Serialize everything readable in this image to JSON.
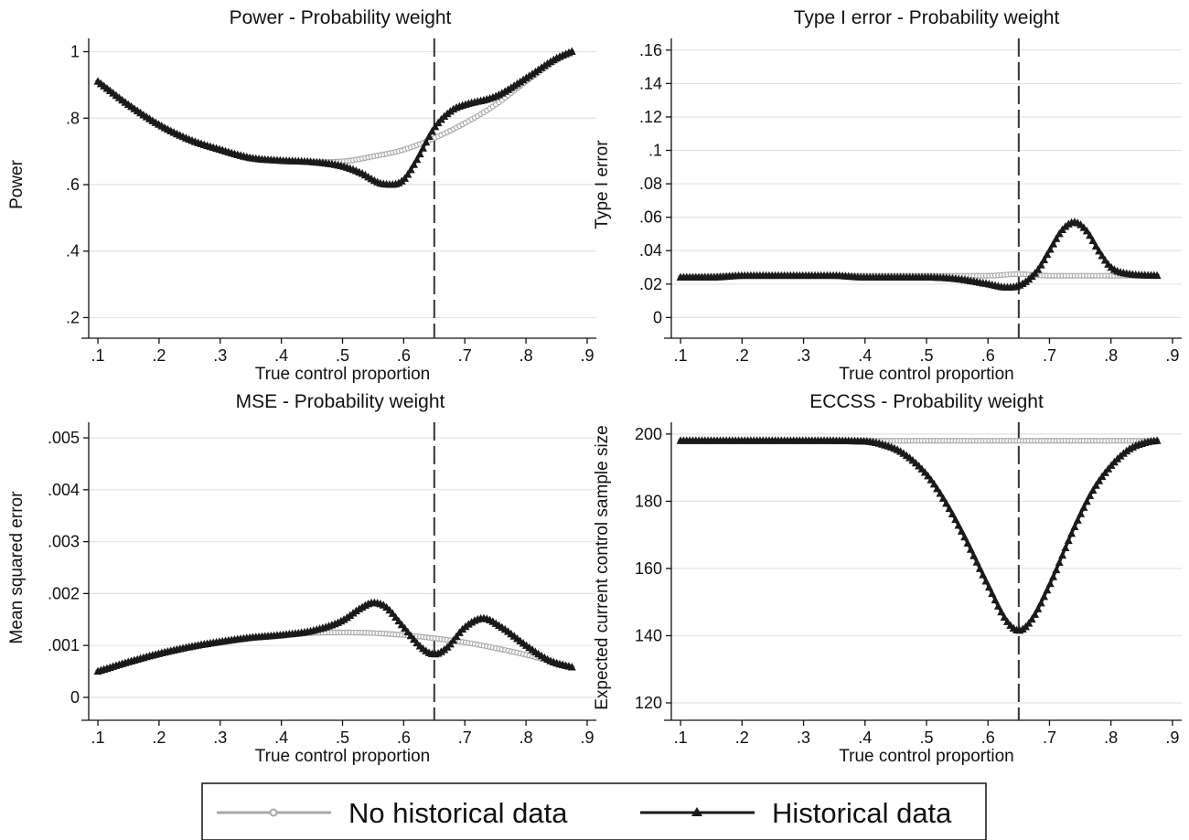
{
  "chart_data": [
    {
      "type": "line",
      "title": "Power - Probability weight",
      "xlabel": "True control proportion",
      "ylabel": "Power",
      "xlim": [
        0.085,
        0.915
      ],
      "ylim": [
        0.16,
        1.04
      ],
      "xticks": [
        0.1,
        0.2,
        0.3,
        0.4,
        0.5,
        0.6,
        0.7,
        0.8,
        0.9
      ],
      "xtick_labels": [
        ".1",
        ".2",
        ".3",
        ".4",
        ".5",
        ".6",
        ".7",
        ".8",
        ".9"
      ],
      "yticks": [
        0.2,
        0.4,
        0.6,
        0.8,
        1.0
      ],
      "ytick_labels": [
        ".2",
        ".4",
        ".6",
        ".8",
        "1"
      ],
      "reference_line_x": 0.65,
      "series": [
        {
          "name": "No historical data",
          "x": [
            0.1,
            0.15,
            0.2,
            0.25,
            0.3,
            0.35,
            0.4,
            0.45,
            0.5,
            0.55,
            0.6,
            0.65,
            0.7,
            0.75,
            0.8,
            0.85,
            0.875
          ],
          "y": [
            0.91,
            0.84,
            0.78,
            0.735,
            0.705,
            0.68,
            0.672,
            0.668,
            0.67,
            0.685,
            0.705,
            0.74,
            0.785,
            0.84,
            0.91,
            0.975,
            1.0
          ]
        },
        {
          "name": "Historical data",
          "x": [
            0.1,
            0.15,
            0.2,
            0.25,
            0.3,
            0.35,
            0.4,
            0.45,
            0.5,
            0.53,
            0.56,
            0.58,
            0.6,
            0.62,
            0.65,
            0.68,
            0.7,
            0.75,
            0.8,
            0.85,
            0.875
          ],
          "y": [
            0.91,
            0.84,
            0.78,
            0.735,
            0.705,
            0.68,
            0.672,
            0.668,
            0.655,
            0.635,
            0.605,
            0.6,
            0.615,
            0.67,
            0.77,
            0.825,
            0.84,
            0.865,
            0.92,
            0.98,
            1.0
          ]
        }
      ]
    },
    {
      "type": "line",
      "title": "Type I error - Probability weight",
      "xlabel": "True control proportion",
      "ylabel": "Type I error",
      "xlim": [
        0.085,
        0.915
      ],
      "ylim": [
        -0.008,
        0.167
      ],
      "xticks": [
        0.1,
        0.2,
        0.3,
        0.4,
        0.5,
        0.6,
        0.7,
        0.8,
        0.9
      ],
      "xtick_labels": [
        ".1",
        ".2",
        ".3",
        ".4",
        ".5",
        ".6",
        ".7",
        ".8",
        ".9"
      ],
      "yticks": [
        0,
        0.02,
        0.04,
        0.06,
        0.08,
        0.1,
        0.12,
        0.14,
        0.16
      ],
      "ytick_labels": [
        "0",
        ".02",
        ".04",
        ".06",
        ".08",
        ".1",
        ".12",
        ".14",
        ".16"
      ],
      "reference_line_x": 0.65,
      "series": [
        {
          "name": "No historical data",
          "x": [
            0.1,
            0.2,
            0.3,
            0.4,
            0.5,
            0.55,
            0.6,
            0.65,
            0.7,
            0.75,
            0.8,
            0.875
          ],
          "y": [
            0.024,
            0.025,
            0.025,
            0.025,
            0.025,
            0.025,
            0.025,
            0.026,
            0.025,
            0.025,
            0.025,
            0.025
          ]
        },
        {
          "name": "Historical data",
          "x": [
            0.1,
            0.15,
            0.2,
            0.25,
            0.3,
            0.35,
            0.4,
            0.45,
            0.5,
            0.55,
            0.6,
            0.63,
            0.65,
            0.68,
            0.7,
            0.72,
            0.74,
            0.76,
            0.78,
            0.8,
            0.83,
            0.875
          ],
          "y": [
            0.024,
            0.024,
            0.025,
            0.025,
            0.025,
            0.025,
            0.024,
            0.024,
            0.024,
            0.023,
            0.02,
            0.018,
            0.019,
            0.028,
            0.04,
            0.052,
            0.057,
            0.052,
            0.04,
            0.03,
            0.026,
            0.025
          ]
        }
      ]
    },
    {
      "type": "line",
      "title": "MSE - Probability weight",
      "xlabel": "True control proportion",
      "ylabel": "Mean squared error",
      "xlim": [
        0.085,
        0.915
      ],
      "ylim": [
        -0.0003,
        0.0053
      ],
      "xticks": [
        0.1,
        0.2,
        0.3,
        0.4,
        0.5,
        0.6,
        0.7,
        0.8,
        0.9
      ],
      "xtick_labels": [
        ".1",
        ".2",
        ".3",
        ".4",
        ".5",
        ".6",
        ".7",
        ".8",
        ".9"
      ],
      "yticks": [
        0,
        0.001,
        0.002,
        0.003,
        0.004,
        0.005
      ],
      "ytick_labels": [
        "0",
        ".001",
        ".002",
        ".003",
        ".004",
        ".005"
      ],
      "reference_line_x": 0.65,
      "series": [
        {
          "name": "No historical data",
          "x": [
            0.1,
            0.15,
            0.2,
            0.25,
            0.3,
            0.35,
            0.4,
            0.45,
            0.5,
            0.55,
            0.6,
            0.65,
            0.7,
            0.75,
            0.8,
            0.875
          ],
          "y": [
            0.0005,
            0.00068,
            0.00084,
            0.00097,
            0.00107,
            0.00115,
            0.0012,
            0.00124,
            0.00125,
            0.00124,
            0.0012,
            0.00114,
            0.00106,
            0.00095,
            0.00082,
            0.00058
          ]
        },
        {
          "name": "Historical data",
          "x": [
            0.1,
            0.15,
            0.2,
            0.25,
            0.3,
            0.35,
            0.4,
            0.45,
            0.5,
            0.53,
            0.55,
            0.57,
            0.6,
            0.63,
            0.65,
            0.67,
            0.7,
            0.73,
            0.76,
            0.8,
            0.84,
            0.875
          ],
          "y": [
            0.0005,
            0.00068,
            0.00084,
            0.00097,
            0.00107,
            0.00115,
            0.0012,
            0.00128,
            0.00148,
            0.00172,
            0.00182,
            0.00175,
            0.00135,
            0.00095,
            0.00083,
            0.00095,
            0.00135,
            0.00152,
            0.00135,
            0.001,
            0.0007,
            0.00058
          ]
        }
      ]
    },
    {
      "type": "line",
      "title": "ECCSS - Probability weight",
      "xlabel": "True control proportion",
      "ylabel": "Expected current control sample size",
      "xlim": [
        0.085,
        0.915
      ],
      "ylim": [
        117,
        203.5
      ],
      "xticks": [
        0.1,
        0.2,
        0.3,
        0.4,
        0.5,
        0.6,
        0.7,
        0.8,
        0.9
      ],
      "xtick_labels": [
        ".1",
        ".2",
        ".3",
        ".4",
        ".5",
        ".6",
        ".7",
        ".8",
        ".9"
      ],
      "yticks": [
        120,
        140,
        160,
        180,
        200
      ],
      "ytick_labels": [
        "120",
        "140",
        "160",
        "180",
        "200"
      ],
      "reference_line_x": 0.65,
      "series": [
        {
          "name": "No historical data",
          "x": [
            0.1,
            0.3,
            0.5,
            0.7,
            0.875
          ],
          "y": [
            198,
            198,
            198,
            198,
            198
          ]
        },
        {
          "name": "Historical data",
          "x": [
            0.1,
            0.2,
            0.3,
            0.4,
            0.43,
            0.46,
            0.5,
            0.53,
            0.56,
            0.6,
            0.63,
            0.65,
            0.67,
            0.7,
            0.74,
            0.77,
            0.8,
            0.83,
            0.86,
            0.875
          ],
          "y": [
            198,
            198,
            198,
            197.8,
            196.8,
            194.5,
            188,
            180,
            170,
            155,
            144.5,
            141.5,
            144.5,
            155,
            172,
            183,
            190.5,
            195.5,
            197.6,
            198
          ]
        }
      ]
    }
  ],
  "legend": {
    "items": [
      {
        "label": "No historical data",
        "color": "#a8a8a8",
        "marker": "circle"
      },
      {
        "label": "Historical data",
        "color": "#1a1a1a",
        "marker": "triangle"
      }
    ]
  },
  "colors": {
    "no_historical": "#a8a8a8",
    "historical": "#1a1a1a",
    "grid": "#e3e3e3",
    "axis": "#111111"
  }
}
